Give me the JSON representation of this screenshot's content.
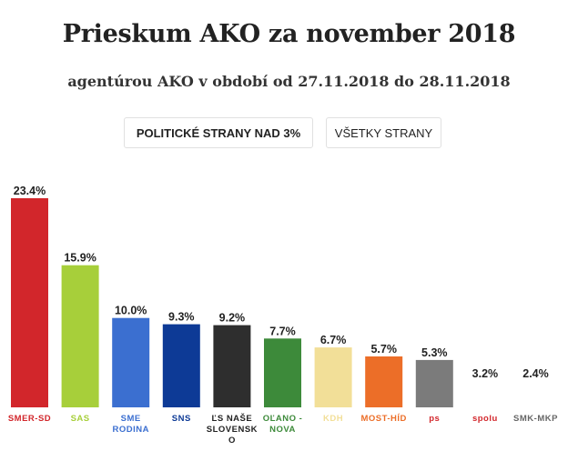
{
  "page": {
    "title": "Prieskum AKO za november 2018",
    "subtitle": "agentúrou AKO v období od 27.11.2018 do 28.11.2018"
  },
  "tabs": [
    {
      "label": "POLITICKÉ STRANY NAD 3%",
      "active": true
    },
    {
      "label": "VŠETKY STRANY",
      "active": false
    }
  ],
  "chart_data": {
    "type": "bar",
    "title": "Prieskum AKO za november 2018",
    "xlabel": "",
    "ylabel": "",
    "ylim": [
      0,
      23.4
    ],
    "grid": false,
    "categories": [
      [
        "SMER-SD"
      ],
      [
        "SAS"
      ],
      [
        "SME",
        "RODINA"
      ],
      [
        "SNS"
      ],
      [
        "ĽS NAŠE",
        "SLOVENSK",
        "O"
      ],
      [
        "OĽANO -",
        "NOVA"
      ],
      [
        "KDH"
      ],
      [
        "MOST-HÍD"
      ],
      [
        "ps"
      ],
      [
        "spolu"
      ],
      [
        "SMK-MKP"
      ]
    ],
    "value_labels": [
      "23.4%",
      "15.9%",
      "10.0%",
      "9.3%",
      "9.2%",
      "7.7%",
      "6.7%",
      "5.7%",
      "5.3%",
      "3.2%",
      "2.4%"
    ],
    "values": [
      23.4,
      15.9,
      10.0,
      9.3,
      9.2,
      7.7,
      6.7,
      5.7,
      5.3,
      3.2,
      2.4
    ],
    "bar_colors": [
      "#d2262b",
      "#a7cf3a",
      "#3b6fd0",
      "#0d3a96",
      "#2e2e2e",
      "#3d8a3a",
      "#f2df98",
      "#ec6e28",
      "#7b7b7b",
      null,
      null
    ],
    "label_colors": [
      "#d2262b",
      "#a7cf3a",
      "#3b6fd0",
      "#0d3a96",
      "#222222",
      "#3d8a3a",
      "#f2df98",
      "#ec6e28",
      "#d2262b",
      "#d2262b",
      "#666666"
    ]
  }
}
